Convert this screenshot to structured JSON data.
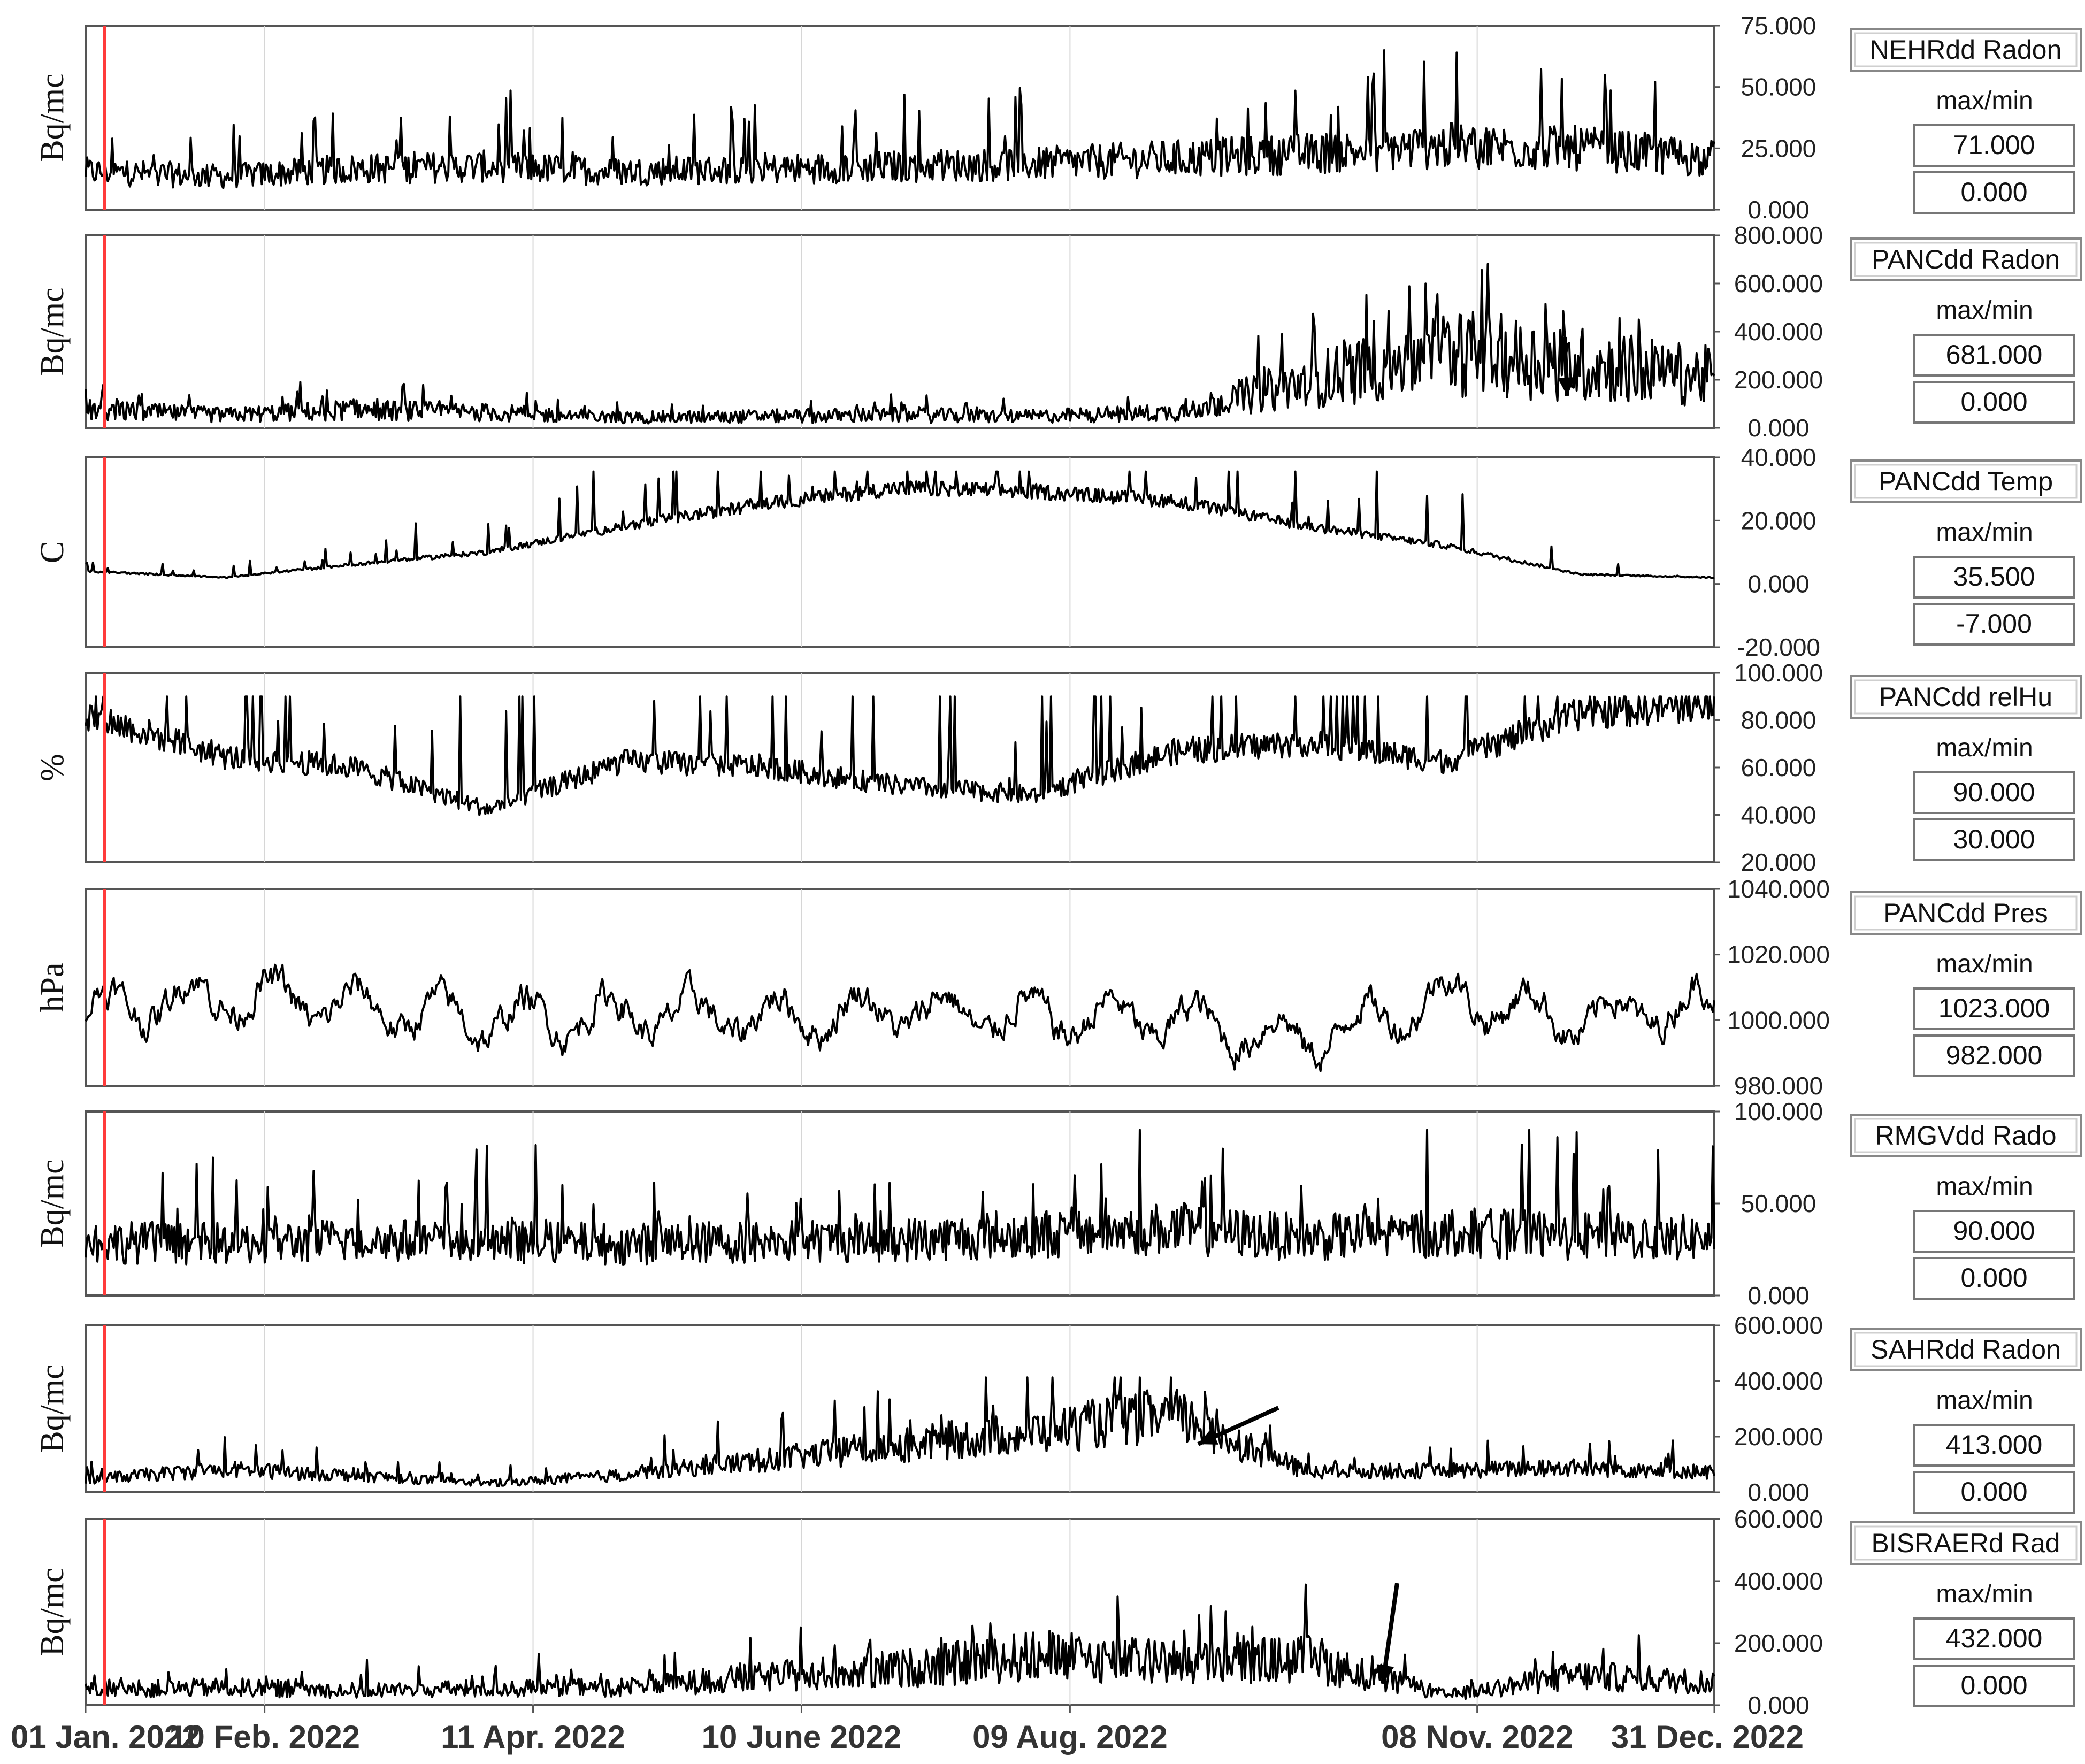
{
  "x_axis": {
    "ticks": [
      "01 Jan. 2022",
      "10 Feb. 2022",
      "11 Apr. 2022",
      "10 June 2022",
      "09 Aug. 2022",
      "08 Nov. 2022",
      "31 Dec. 2022"
    ]
  },
  "panels": [
    {
      "id": "nehr",
      "ylabel": "Bq/mc",
      "ticks": [
        "75.000",
        "50.000",
        "25.000",
        "0.000"
      ],
      "badge": "NEHRdd Radon",
      "maxmin_label": "max/min",
      "max": "71.000",
      "min": "0.000"
    },
    {
      "id": "panc-radon",
      "ylabel": "Bq/mc",
      "ticks": [
        "800.000",
        "600.000",
        "400.000",
        "200.000",
        "0.000"
      ],
      "badge": "PANCdd Radon",
      "maxmin_label": "max/min",
      "max": "681.000",
      "min": "0.000"
    },
    {
      "id": "panc-temp",
      "ylabel": "C",
      "ticks": [
        "40.000",
        "20.000",
        "0.000",
        "-20.000"
      ],
      "badge": "PANCdd Temp",
      "maxmin_label": "max/min",
      "max": "35.500",
      "min": "-7.000"
    },
    {
      "id": "panc-relhu",
      "ylabel": "%",
      "ticks": [
        "100.000",
        "80.000",
        "60.000",
        "40.000",
        "20.000"
      ],
      "badge": "PANCdd relHu",
      "maxmin_label": "max/min",
      "max": "90.000",
      "min": "30.000"
    },
    {
      "id": "panc-pres",
      "ylabel": "hPa",
      "ticks": [
        "1040.000",
        "1020.000",
        "1000.000",
        "980.000"
      ],
      "badge": "PANCdd Pres",
      "maxmin_label": "max/min",
      "max": "1023.000",
      "min": "982.000"
    },
    {
      "id": "rmgv",
      "ylabel": "Bq/mc",
      "ticks": [
        "100.000",
        "50.000",
        "0.000"
      ],
      "badge": "RMGVdd Rado",
      "maxmin_label": "max/min",
      "max": "90.000",
      "min": "0.000"
    },
    {
      "id": "sahr",
      "ylabel": "Bq/mc",
      "ticks": [
        "600.000",
        "400.000",
        "200.000",
        "0.000"
      ],
      "badge": "SAHRdd Radon",
      "maxmin_label": "max/min",
      "max": "413.000",
      "min": "0.000"
    },
    {
      "id": "bisraer",
      "ylabel": "Bq/mc",
      "ticks": [
        "600.000",
        "400.000",
        "200.000",
        "0.000"
      ],
      "badge": "BISRAERd Rad",
      "maxmin_label": "max/min",
      "max": "432.000",
      "min": "0.000"
    }
  ],
  "chart_data": [
    {
      "type": "line",
      "series": [
        {
          "name": "NEHRdd Radon",
          "max": 71,
          "min": 0
        }
      ],
      "ylabel": "Bq/mc",
      "ylim": [
        0,
        75
      ],
      "x": [
        "2022-01-01",
        "2022-02-01",
        "2022-03-01",
        "2022-04-01",
        "2022-05-01",
        "2022-06-01",
        "2022-07-01",
        "2022-08-01",
        "2022-09-01",
        "2022-10-01",
        "2022-11-01",
        "2022-12-01",
        "2022-12-31"
      ],
      "values": [
        15,
        13,
        16,
        17,
        15,
        16,
        17,
        18,
        20,
        22,
        25,
        24,
        20
      ]
    },
    {
      "type": "line",
      "series": [
        {
          "name": "PANCdd Radon",
          "max": 681,
          "min": 0
        }
      ],
      "ylabel": "Bq/mc",
      "ylim": [
        0,
        800
      ],
      "x": [
        "2022-01-01",
        "2022-02-01",
        "2022-03-01",
        "2022-04-01",
        "2022-05-01",
        "2022-06-01",
        "2022-07-01",
        "2022-08-01",
        "2022-09-01",
        "2022-10-01",
        "2022-11-01",
        "2022-12-01",
        "2022-12-31"
      ],
      "values": [
        70,
        50,
        70,
        60,
        40,
        45,
        50,
        45,
        60,
        180,
        300,
        250,
        200
      ]
    },
    {
      "type": "line",
      "series": [
        {
          "name": "PANCdd Temp",
          "max": 35.5,
          "min": -7.0
        }
      ],
      "ylabel": "C",
      "ylim": [
        -20,
        40
      ],
      "x": [
        "2022-01-01",
        "2022-02-01",
        "2022-03-01",
        "2022-04-01",
        "2022-05-01",
        "2022-06-01",
        "2022-07-01",
        "2022-08-01",
        "2022-09-01",
        "2022-10-01",
        "2022-11-01",
        "2022-12-01",
        "2022-12-31"
      ],
      "values": [
        4,
        2,
        6,
        10,
        18,
        25,
        30,
        29,
        26,
        18,
        12,
        3,
        2
      ]
    },
    {
      "type": "line",
      "series": [
        {
          "name": "PANCdd relHu",
          "max": 90,
          "min": 30
        }
      ],
      "ylabel": "%",
      "ylim": [
        20,
        100
      ],
      "x": [
        "2022-01-01",
        "2022-02-01",
        "2022-03-01",
        "2022-04-01",
        "2022-05-01",
        "2022-06-01",
        "2022-07-01",
        "2022-08-01",
        "2022-09-01",
        "2022-10-01",
        "2022-11-01",
        "2022-12-01",
        "2022-12-31"
      ],
      "values": [
        82,
        64,
        60,
        42,
        62,
        60,
        52,
        48,
        66,
        70,
        62,
        82,
        86
      ]
    },
    {
      "type": "line",
      "series": [
        {
          "name": "PANCdd Pres",
          "max": 1023,
          "min": 982
        }
      ],
      "ylabel": "hPa",
      "ylim": [
        980,
        1040
      ],
      "x": [
        "2022-01-01",
        "2022-02-01",
        "2022-03-01",
        "2022-04-01",
        "2022-05-01",
        "2022-06-01",
        "2022-07-01",
        "2022-08-01",
        "2022-09-01",
        "2022-10-01",
        "2022-11-01",
        "2022-12-01",
        "2022-12-31"
      ],
      "values": [
        1003,
        1008,
        1004,
        1000,
        1002,
        1001,
        1003,
        1001,
        1000,
        994,
        1008,
        1000,
        1006
      ]
    },
    {
      "type": "line",
      "series": [
        {
          "name": "RMGVdd Rado",
          "max": 90,
          "min": 0
        }
      ],
      "ylabel": "Bq/mc",
      "ylim": [
        0,
        100
      ],
      "x": [
        "2022-01-01",
        "2022-02-01",
        "2022-03-01",
        "2022-04-01",
        "2022-05-01",
        "2022-06-01",
        "2022-07-01",
        "2022-08-01",
        "2022-09-01",
        "2022-10-01",
        "2022-11-01",
        "2022-12-01",
        "2022-12-31"
      ],
      "values": [
        28,
        27,
        29,
        28,
        27,
        28,
        29,
        32,
        35,
        30,
        33,
        31,
        30
      ]
    },
    {
      "type": "line",
      "series": [
        {
          "name": "SAHRdd Radon",
          "max": 413,
          "min": 0
        }
      ],
      "ylabel": "Bq/mc",
      "ylim": [
        0,
        600
      ],
      "x": [
        "2022-01-01",
        "2022-02-01",
        "2022-03-01",
        "2022-04-01",
        "2022-05-01",
        "2022-06-01",
        "2022-07-01",
        "2022-08-01",
        "2022-09-01",
        "2022-10-01",
        "2022-11-01",
        "2022-12-01",
        "2022-12-31"
      ],
      "values": [
        45,
        80,
        60,
        30,
        60,
        110,
        160,
        210,
        270,
        70,
        75,
        85,
        70
      ]
    },
    {
      "type": "line",
      "series": [
        {
          "name": "BISRAERd Rad",
          "max": 432,
          "min": 0
        }
      ],
      "ylabel": "Bq/mc",
      "ylim": [
        0,
        600
      ],
      "x": [
        "2022-01-01",
        "2022-02-01",
        "2022-03-01",
        "2022-04-01",
        "2022-05-01",
        "2022-06-01",
        "2022-07-01",
        "2022-08-01",
        "2022-09-01",
        "2022-10-01",
        "2022-11-01",
        "2022-12-01",
        "2022-12-31"
      ],
      "values": [
        45,
        55,
        45,
        50,
        55,
        85,
        110,
        150,
        130,
        140,
        30,
        90,
        70
      ]
    }
  ]
}
